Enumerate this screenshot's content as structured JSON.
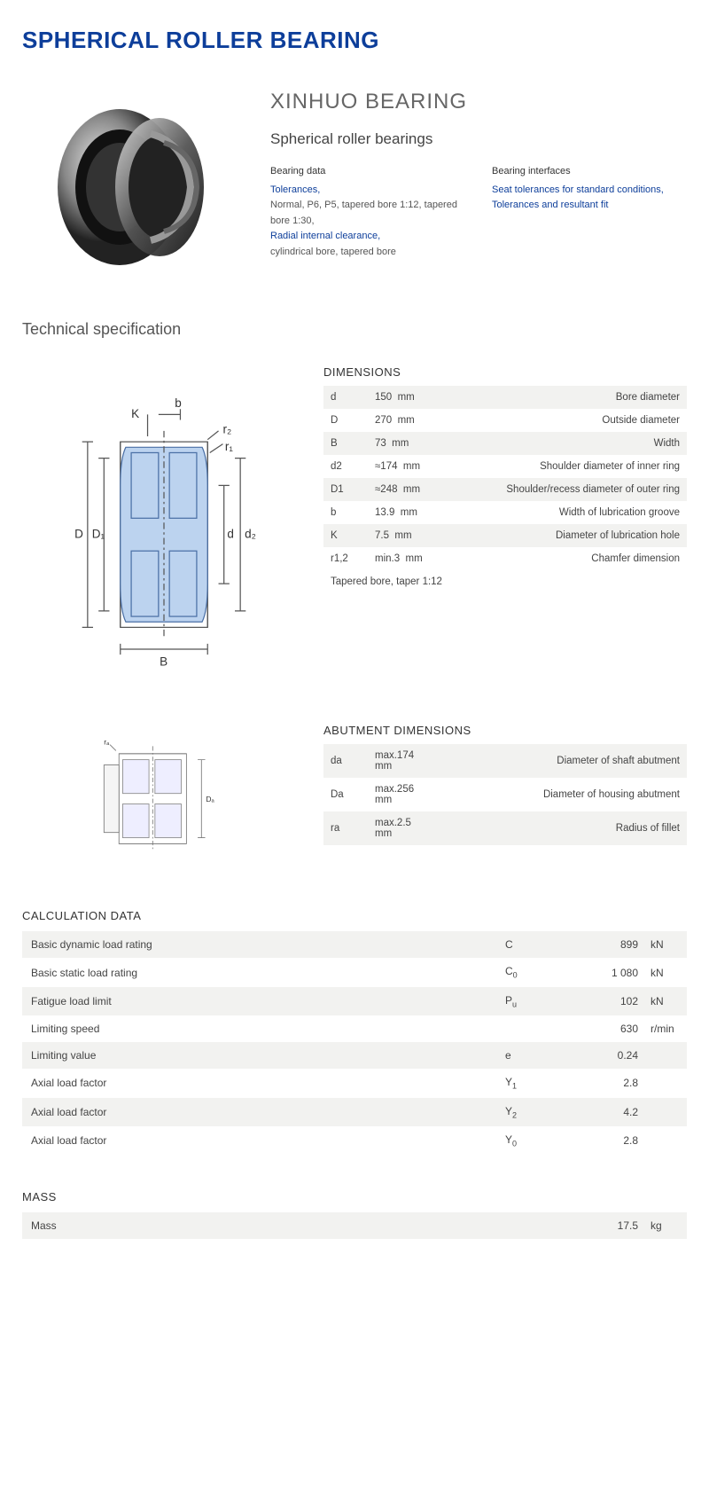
{
  "title": "SPHERICAL ROLLER BEARING",
  "brand": "XINHUO BEARING",
  "subtitle": "Spherical roller bearings",
  "bearing_data": {
    "header": "Bearing data",
    "link1": "Tolerances,",
    "text1": "Normal, P6, P5, tapered bore 1:12, tapered bore 1:30,",
    "link2": "Radial internal clearance,",
    "text2": "cylindrical bore, tapered bore"
  },
  "bearing_interfaces": {
    "header": "Bearing interfaces",
    "link1": "Seat tolerances for standard conditions,",
    "link2": "Tolerances and resultant fit"
  },
  "tech_spec_title": "Technical specification",
  "dimensions": {
    "header": "DIMENSIONS",
    "rows": [
      {
        "sym": "d",
        "val": "150",
        "unit": "mm",
        "desc": "Bore diameter"
      },
      {
        "sym": "D",
        "val": "270",
        "unit": "mm",
        "desc": "Outside diameter"
      },
      {
        "sym": "B",
        "val": "73",
        "unit": "mm",
        "desc": "Width"
      },
      {
        "sym": "d2",
        "val": "≈174",
        "unit": "mm",
        "desc": "Shoulder diameter of inner ring"
      },
      {
        "sym": "D1",
        "val": "≈248",
        "unit": "mm",
        "desc": "Shoulder/recess diameter of outer ring"
      },
      {
        "sym": "b",
        "val": "13.9",
        "unit": "mm",
        "desc": "Width of lubrication groove"
      },
      {
        "sym": "K",
        "val": "7.5",
        "unit": "mm",
        "desc": "Diameter of lubrication hole"
      },
      {
        "sym": "r1,2",
        "val": "min.3",
        "unit": "mm",
        "desc": "Chamfer dimension"
      }
    ],
    "note": "Tapered bore, taper 1:12"
  },
  "abutment": {
    "header": "ABUTMENT DIMENSIONS",
    "rows": [
      {
        "sym": "da",
        "val": "max.174",
        "unit": "mm",
        "desc": "Diameter of shaft abutment"
      },
      {
        "sym": "Da",
        "val": "max.256",
        "unit": "mm",
        "desc": "Diameter of housing abutment"
      },
      {
        "sym": "ra",
        "val": "max.2.5",
        "unit": "mm",
        "desc": "Radius of fillet"
      }
    ]
  },
  "calculation": {
    "header": "CALCULATION DATA",
    "rows": [
      {
        "label": "Basic dynamic load rating",
        "sym": "C",
        "sub": "",
        "val": "899",
        "unit": "kN"
      },
      {
        "label": "Basic static load rating",
        "sym": "C",
        "sub": "0",
        "val": "1 080",
        "unit": "kN"
      },
      {
        "label": "Fatigue load limit",
        "sym": "P",
        "sub": "u",
        "val": "102",
        "unit": "kN"
      },
      {
        "label": "Limiting speed",
        "sym": "",
        "sub": "",
        "val": "630",
        "unit": "r/min"
      },
      {
        "label": "Limiting value",
        "sym": "e",
        "sub": "",
        "val": "0.24",
        "unit": ""
      },
      {
        "label": "Axial load factor",
        "sym": "Y",
        "sub": "1",
        "val": "2.8",
        "unit": ""
      },
      {
        "label": "Axial load factor",
        "sym": "Y",
        "sub": "2",
        "val": "4.2",
        "unit": ""
      },
      {
        "label": "Axial load factor",
        "sym": "Y",
        "sub": "0",
        "val": "2.8",
        "unit": ""
      }
    ]
  },
  "mass": {
    "header": "MASS",
    "label": "Mass",
    "val": "17.5",
    "unit": "kg"
  },
  "diagram1_labels": {
    "D": "D",
    "D1": "D₁",
    "d": "d",
    "d2": "d₂",
    "B": "B",
    "K": "K",
    "b": "b",
    "r1": "r₁",
    "r2": "r₂"
  },
  "diagram2_labels": {
    "ra": "rₐ",
    "Da": "Dₐ"
  }
}
